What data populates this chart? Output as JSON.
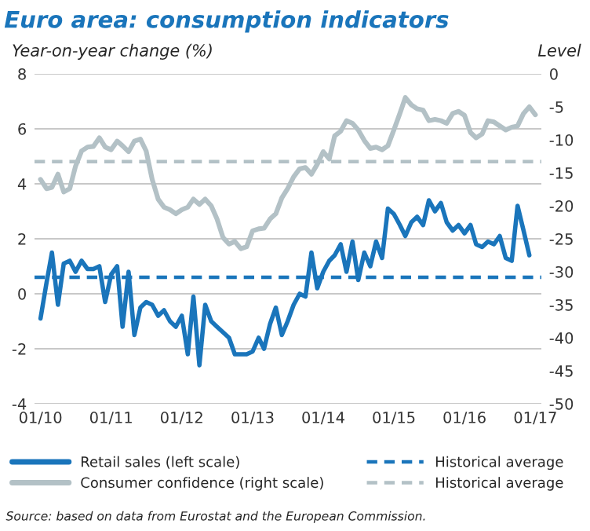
{
  "chart_data": {
    "type": "line",
    "title": "Euro area: consumption indicators",
    "ylabel": "Year-on-year change (%)",
    "y2label": "Level",
    "x": [
      "2010-01",
      "2010-02",
      "2010-03",
      "2010-04",
      "2010-05",
      "2010-06",
      "2010-07",
      "2010-08",
      "2010-09",
      "2010-10",
      "2010-11",
      "2010-12",
      "2011-01",
      "2011-02",
      "2011-03",
      "2011-04",
      "2011-05",
      "2011-06",
      "2011-07",
      "2011-08",
      "2011-09",
      "2011-10",
      "2011-11",
      "2011-12",
      "2012-01",
      "2012-02",
      "2012-03",
      "2012-04",
      "2012-05",
      "2012-06",
      "2012-07",
      "2012-08",
      "2012-09",
      "2012-10",
      "2012-11",
      "2012-12",
      "2013-01",
      "2013-02",
      "2013-03",
      "2013-04",
      "2013-05",
      "2013-06",
      "2013-07",
      "2013-08",
      "2013-09",
      "2013-10",
      "2013-11",
      "2013-12",
      "2014-01",
      "2014-02",
      "2014-03",
      "2014-04",
      "2014-05",
      "2014-06",
      "2014-07",
      "2014-08",
      "2014-09",
      "2014-10",
      "2014-11",
      "2014-12",
      "2015-01",
      "2015-02",
      "2015-03",
      "2015-04",
      "2015-05",
      "2015-06",
      "2015-07",
      "2015-08",
      "2015-09",
      "2015-10",
      "2015-11",
      "2015-12",
      "2016-01",
      "2016-02",
      "2016-03",
      "2016-04",
      "2016-05",
      "2016-06",
      "2016-07",
      "2016-08",
      "2016-09",
      "2016-10",
      "2016-11",
      "2016-12",
      "2017-01"
    ],
    "series": [
      {
        "name": "Retail sales (left scale)",
        "color": "#1a75bb",
        "values": [
          -0.9,
          0.4,
          1.5,
          -0.4,
          1.1,
          1.2,
          0.8,
          1.2,
          0.9,
          0.9,
          1.0,
          -0.3,
          0.7,
          1.0,
          -1.2,
          0.8,
          -1.5,
          -0.5,
          -0.3,
          -0.4,
          -0.8,
          -0.6,
          -1.0,
          -1.2,
          -0.8,
          -2.2,
          -0.1,
          -2.6,
          -0.4,
          -1.0,
          -1.2,
          -1.4,
          -1.6,
          -2.2,
          -2.2,
          -2.2,
          -2.1,
          -1.6,
          -2.0,
          -1.1,
          -0.5,
          -1.5,
          -1.0,
          -0.4,
          0.0,
          -0.1,
          1.5,
          0.2,
          0.8,
          1.2,
          1.4,
          1.8,
          0.8,
          1.9,
          0.5,
          1.5,
          1.0,
          1.9,
          1.3,
          3.1,
          2.9,
          2.5,
          2.1,
          2.6,
          2.8,
          2.5,
          3.4,
          3.0,
          3.3,
          2.6,
          2.3,
          2.5,
          2.2,
          2.5,
          1.8,
          1.7,
          1.9,
          1.8,
          2.1,
          1.3,
          1.2,
          3.2,
          2.3,
          1.4,
          null
        ]
      },
      {
        "name": "Consumer confidence (right scale)",
        "color": "#b3c1c6",
        "axis": "y2",
        "values": [
          -16.0,
          -17.4,
          -17.2,
          -15.2,
          -17.9,
          -17.4,
          -14.0,
          -11.7,
          -11.1,
          -11.0,
          -9.7,
          -11.1,
          -11.5,
          -10.2,
          -10.9,
          -11.8,
          -10.2,
          -9.9,
          -11.7,
          -16.0,
          -19.0,
          -20.2,
          -20.6,
          -21.2,
          -20.6,
          -20.2,
          -19.0,
          -19.8,
          -19.0,
          -20.0,
          -22.0,
          -24.8,
          -25.8,
          -25.4,
          -26.5,
          -26.2,
          -23.8,
          -23.5,
          -23.4,
          -22.0,
          -21.2,
          -18.8,
          -17.4,
          -15.6,
          -14.4,
          -14.2,
          -15.2,
          -13.7,
          -11.8,
          -12.9,
          -9.4,
          -8.7,
          -7.1,
          -7.5,
          -8.5,
          -10.1,
          -11.3,
          -11.1,
          -11.5,
          -10.9,
          -8.5,
          -6.0,
          -3.6,
          -4.7,
          -5.3,
          -5.5,
          -7.1,
          -6.9,
          -7.1,
          -7.5,
          -6.0,
          -5.7,
          -6.3,
          -8.9,
          -9.7,
          -9.1,
          -7.1,
          -7.3,
          -7.9,
          -8.5,
          -8.1,
          -7.9,
          -6.0,
          -5.0,
          -6.2
        ]
      }
    ],
    "ref_lines": [
      {
        "axis": "y",
        "value": 0.6,
        "label": "Historical average",
        "color": "#1a75bb",
        "line_style": "dashed"
      },
      {
        "axis": "y2",
        "value": -13.3,
        "label": "Historical average",
        "color": "#b3c1c6",
        "line_style": "dashed"
      }
    ],
    "xlim": [
      "2009-12",
      "2017-02"
    ],
    "xticks": [
      {
        "value": "2010-01",
        "label": "01/10"
      },
      {
        "value": "2011-01",
        "label": "01/11"
      },
      {
        "value": "2012-01",
        "label": "01/12"
      },
      {
        "value": "2013-01",
        "label": "01/13"
      },
      {
        "value": "2014-01",
        "label": "01/14"
      },
      {
        "value": "2015-01",
        "label": "01/15"
      },
      {
        "value": "2016-01",
        "label": "01/16"
      },
      {
        "value": "2017-01",
        "label": "01/17"
      }
    ],
    "ylim": [
      -4,
      8
    ],
    "yticks": [
      -4,
      -2,
      0,
      2,
      4,
      6,
      8
    ],
    "y2lim": [
      -50,
      0
    ],
    "y2ticks": [
      -50,
      -45,
      -40,
      -35,
      -30,
      -25,
      -20,
      -15,
      -10,
      -5,
      0
    ],
    "grid": "y",
    "legend": "bottom",
    "marker": "none",
    "line_style": "solid",
    "annotations": [
      "Source: based on data from Eurostat and the European Commission."
    ]
  }
}
